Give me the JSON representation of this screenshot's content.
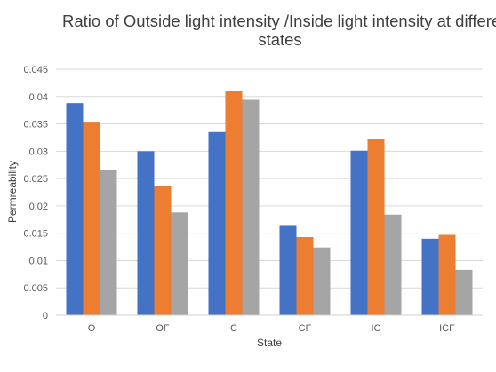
{
  "chart_data": {
    "type": "bar",
    "title_lines": [
      "Ratio of Outside light intensity /Inside light intensity at differen",
      "states"
    ],
    "xlabel": "State",
    "ylabel": "Permreability",
    "categories": [
      "O",
      "OF",
      "C",
      "CF",
      "IC",
      "ICF"
    ],
    "ylim": [
      0,
      0.045
    ],
    "yticks": [
      "0",
      "0.005",
      "0.01",
      "0.015",
      "0.02",
      "0.025",
      "0.03",
      "0.035",
      "0.04",
      "0.045"
    ],
    "grid": true,
    "legend": "none",
    "series": [
      {
        "color": "#4472C4",
        "values": [
          0.0388,
          0.03,
          0.0335,
          0.0165,
          0.0301,
          0.014
        ]
      },
      {
        "color": "#ED7D31",
        "values": [
          0.0354,
          0.0236,
          0.041,
          0.0143,
          0.0323,
          0.0147
        ]
      },
      {
        "color": "#A5A5A5",
        "values": [
          0.0266,
          0.0188,
          0.0394,
          0.0124,
          0.0184,
          0.0083
        ]
      }
    ]
  }
}
